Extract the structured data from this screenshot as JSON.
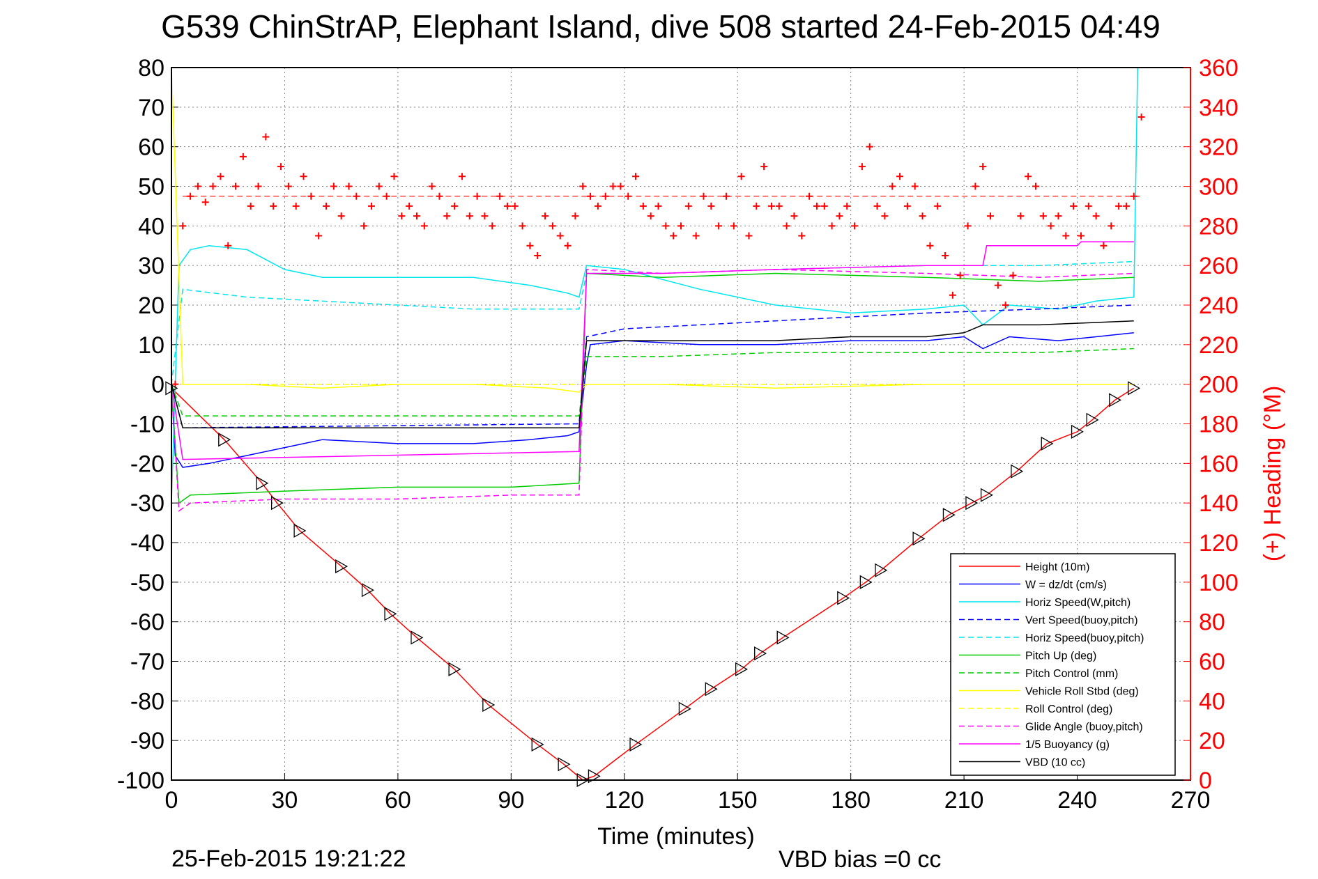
{
  "chart_data": {
    "type": "line",
    "title": "G539 ChinStrAP, Elephant Island, dive 508 started 24-Feb-2015 04:49",
    "xlabel": "Time (minutes)",
    "ylabel_right": "(+) Heading (°M)",
    "xlim": [
      0,
      270
    ],
    "ylim": [
      -100,
      80
    ],
    "ylim_right": [
      0,
      360
    ],
    "xticks": [
      "0",
      "30",
      "60",
      "90",
      "120",
      "150",
      "180",
      "210",
      "240",
      "270"
    ],
    "yticks": [
      "80",
      "70",
      "60",
      "50",
      "40",
      "30",
      "20",
      "10",
      "0",
      "-10",
      "-20",
      "-30",
      "-40",
      "-50",
      "-60",
      "-70",
      "-80",
      "-90",
      "-100"
    ],
    "yticks_right": [
      "360",
      "340",
      "320",
      "300",
      "280",
      "260",
      "240",
      "220",
      "200",
      "180",
      "160",
      "140",
      "120",
      "100",
      "80",
      "60",
      "40",
      "20",
      "0"
    ],
    "grid": true,
    "legend_position": "bottom-right",
    "footer_date": "25-Feb-2015 19:21:22",
    "footer_bias": "VBD bias =0 cc",
    "series": [
      {
        "name": "Height (10m)",
        "color": "#ff0000",
        "dash": "solid",
        "x": [
          0,
          14,
          24,
          28,
          34,
          45,
          52,
          58,
          65,
          75,
          84,
          97,
          104,
          109,
          112,
          123,
          136,
          143,
          151,
          156,
          162,
          178,
          184,
          188,
          198,
          206,
          212,
          216,
          224,
          232,
          240,
          244,
          250,
          255
        ],
        "y": [
          -1,
          -14,
          -25,
          -30,
          -37,
          -46,
          -52,
          -58,
          -64,
          -72,
          -81,
          -91,
          -96,
          -100,
          -99,
          -91,
          -82,
          -77,
          -72,
          -68,
          -64,
          -54,
          -50,
          -47,
          -39,
          -33,
          -30,
          -28,
          -22,
          -15,
          -12,
          -9,
          -4,
          -1
        ]
      },
      {
        "name": "W = dz/dt (cm/s)",
        "color": "#0000ff",
        "dash": "solid",
        "x": [
          0,
          1,
          3,
          10,
          20,
          30,
          40,
          60,
          80,
          95,
          105,
          108,
          110,
          111,
          120,
          140,
          160,
          180,
          200,
          210,
          215,
          222,
          235,
          245,
          255
        ],
        "y": [
          0,
          -18,
          -21,
          -20,
          -18,
          -16,
          -14,
          -15,
          -15,
          -14,
          -13,
          -12,
          5,
          10,
          11,
          10,
          10,
          11,
          11,
          12,
          9,
          12,
          11,
          12,
          13
        ]
      },
      {
        "name": "Horiz Speed(W,pitch)",
        "color": "#00e5ee",
        "dash": "solid",
        "x": [
          0,
          2,
          5,
          10,
          20,
          30,
          40,
          60,
          80,
          95,
          105,
          108,
          110,
          120,
          140,
          160,
          180,
          200,
          210,
          215,
          222,
          235,
          245,
          255,
          256
        ],
        "y": [
          -30,
          30,
          34,
          35,
          34,
          29,
          27,
          27,
          27,
          25,
          23,
          22,
          30,
          29,
          24,
          20,
          18,
          19,
          20,
          15,
          20,
          19,
          21,
          22,
          80
        ]
      },
      {
        "name": "Vert Speed(buoy,pitch)",
        "color": "#0000ff",
        "dash": "dashed",
        "x": [
          0,
          3,
          108,
          110,
          120,
          160,
          200,
          230,
          255
        ],
        "y": [
          0,
          -11,
          -10,
          12,
          14,
          16,
          18,
          19,
          20
        ]
      },
      {
        "name": "Horiz Speed(buoy,pitch)",
        "color": "#00e5ee",
        "dash": "dashed",
        "x": [
          0,
          3,
          20,
          40,
          60,
          80,
          108,
          110,
          130,
          160,
          200,
          230,
          255
        ],
        "y": [
          0,
          24,
          22,
          21,
          20,
          19,
          19,
          28,
          28,
          29,
          30,
          30,
          31
        ]
      },
      {
        "name": "Pitch Up (deg)",
        "color": "#00cc00",
        "dash": "solid",
        "x": [
          0,
          2,
          5,
          30,
          60,
          90,
          108,
          110,
          130,
          160,
          200,
          230,
          255
        ],
        "y": [
          0,
          -30,
          -28,
          -27,
          -26,
          -26,
          -25,
          28,
          27,
          28,
          27,
          26,
          27
        ]
      },
      {
        "name": "Pitch Control (mm)",
        "color": "#00cc00",
        "dash": "dashed",
        "x": [
          0,
          3,
          108,
          110,
          130,
          160,
          200,
          230,
          255
        ],
        "y": [
          0,
          -8,
          -8,
          7,
          7,
          8,
          8,
          8,
          9
        ]
      },
      {
        "name": "Vehicle Roll Stbd (deg)",
        "color": "#ffff00",
        "dash": "solid",
        "x": [
          0,
          3,
          20,
          40,
          60,
          80,
          100,
          108,
          110,
          130,
          160,
          200,
          230,
          255
        ],
        "y": [
          80,
          0,
          0,
          -1,
          0,
          0,
          -1,
          -2,
          0,
          0,
          -1,
          0,
          0,
          0
        ]
      },
      {
        "name": "Roll Control (deg)",
        "color": "#ffff00",
        "dash": "dashed",
        "x": [
          0,
          3,
          40,
          80,
          108,
          110,
          160,
          200,
          255
        ],
        "y": [
          0,
          0,
          0,
          0,
          0,
          0,
          0,
          0,
          0
        ]
      },
      {
        "name": "Glide Angle (buoy,pitch)",
        "color": "#ff00ff",
        "dash": "dashed",
        "x": [
          0,
          2,
          5,
          30,
          60,
          90,
          108,
          110,
          130,
          160,
          200,
          230,
          255
        ],
        "y": [
          0,
          -32,
          -30,
          -29,
          -29,
          -28,
          -28,
          29,
          28,
          29,
          28,
          27,
          28
        ]
      },
      {
        "name": "1/5 Buoyancy (g)",
        "color": "#ff00ff",
        "dash": "solid",
        "x": [
          0,
          3,
          108,
          110,
          130,
          160,
          200,
          215,
          216,
          240,
          241,
          255
        ],
        "y": [
          0,
          -19,
          -17,
          28,
          28,
          29,
          30,
          30,
          35,
          35,
          36,
          36
        ]
      },
      {
        "name": "VBD (10 cc)",
        "color": "#000000",
        "dash": "solid",
        "x": [
          0,
          3,
          108,
          110,
          130,
          160,
          180,
          200,
          210,
          215,
          230,
          255
        ],
        "y": [
          0,
          -11,
          -11,
          11,
          11,
          11,
          12,
          12,
          13,
          15,
          15,
          16
        ]
      }
    ],
    "heading": {
      "name": "(+) Heading",
      "color": "#ff0000",
      "marker": "+",
      "mean": 295,
      "x": [
        1,
        3,
        5,
        7,
        9,
        11,
        13,
        15,
        17,
        19,
        21,
        23,
        25,
        27,
        29,
        31,
        33,
        35,
        37,
        39,
        41,
        43,
        45,
        47,
        49,
        51,
        53,
        55,
        57,
        59,
        61,
        63,
        65,
        67,
        69,
        71,
        73,
        75,
        77,
        79,
        81,
        83,
        85,
        87,
        89,
        91,
        93,
        95,
        97,
        99,
        101,
        103,
        105,
        107,
        109,
        111,
        113,
        115,
        117,
        119,
        121,
        123,
        125,
        127,
        129,
        131,
        133,
        135,
        137,
        139,
        141,
        143,
        145,
        147,
        149,
        151,
        153,
        155,
        157,
        159,
        161,
        163,
        165,
        167,
        169,
        171,
        173,
        175,
        177,
        179,
        181,
        183,
        185,
        187,
        189,
        191,
        193,
        195,
        197,
        199,
        201,
        203,
        205,
        207,
        209,
        211,
        213,
        215,
        217,
        219,
        221,
        223,
        225,
        227,
        229,
        231,
        233,
        235,
        237,
        239,
        241,
        243,
        245,
        247,
        249,
        251,
        253,
        255,
        257
      ],
      "y": [
        200,
        280,
        295,
        300,
        292,
        300,
        305,
        270,
        300,
        315,
        290,
        300,
        325,
        290,
        310,
        300,
        290,
        305,
        295,
        275,
        290,
        300,
        285,
        300,
        295,
        280,
        290,
        300,
        295,
        305,
        285,
        290,
        285,
        280,
        300,
        295,
        285,
        290,
        305,
        285,
        295,
        285,
        280,
        295,
        290,
        290,
        280,
        270,
        265,
        285,
        280,
        275,
        270,
        285,
        300,
        295,
        290,
        295,
        300,
        300,
        295,
        305,
        290,
        285,
        290,
        280,
        275,
        280,
        290,
        275,
        295,
        290,
        280,
        295,
        280,
        305,
        275,
        290,
        310,
        290,
        290,
        280,
        285,
        275,
        295,
        290,
        290,
        280,
        285,
        290,
        280,
        310,
        320,
        290,
        285,
        300,
        305,
        290,
        300,
        285,
        270,
        290,
        265,
        245,
        255,
        280,
        300,
        310,
        285,
        250,
        240,
        255,
        285,
        305,
        300,
        285,
        280,
        285,
        275,
        290,
        275,
        290,
        285,
        270,
        280,
        290,
        290,
        295,
        335
      ]
    }
  }
}
